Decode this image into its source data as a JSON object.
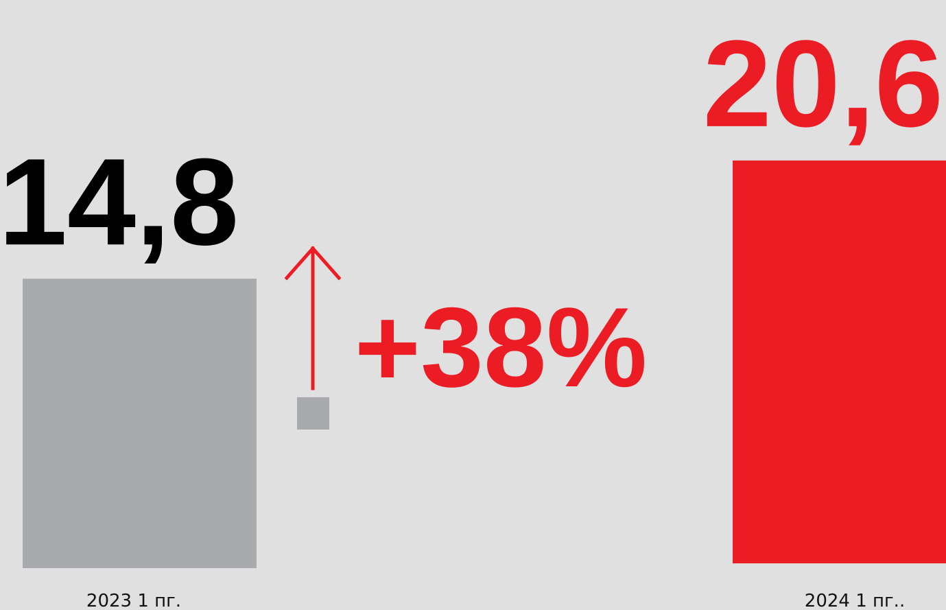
{
  "chart_data": {
    "type": "bar",
    "categories": [
      "2023 1 пг.",
      "2024 1 пг.."
    ],
    "values": [
      14.8,
      20.6
    ],
    "value_labels": [
      "14,8",
      "20,6"
    ],
    "change_label": "+38%",
    "change_icon": "arrow-up-icon",
    "title": "",
    "xlabel": "",
    "ylabel": "",
    "legend": "none",
    "grid": false,
    "colors": {
      "background": "#e0e0e0",
      "bars": [
        "#a9aaad",
        "#ec1c24"
      ],
      "value_labels": [
        "#000000",
        "#ec1c24"
      ],
      "change": "#ec1c24",
      "arrow_base": "#a9aaad"
    }
  }
}
